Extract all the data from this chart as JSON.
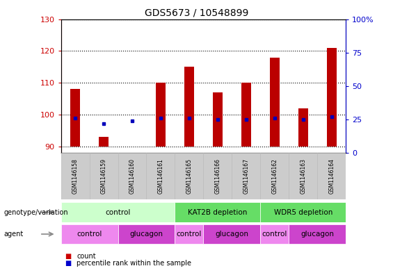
{
  "title": "GDS5673 / 10548899",
  "samples": [
    "GSM1146158",
    "GSM1146159",
    "GSM1146160",
    "GSM1146161",
    "GSM1146165",
    "GSM1146166",
    "GSM1146167",
    "GSM1146162",
    "GSM1146163",
    "GSM1146164"
  ],
  "count_values": [
    108,
    93,
    90,
    110,
    115,
    107,
    110,
    118,
    102,
    121
  ],
  "percentile_values": [
    26,
    22,
    24,
    26,
    26,
    25,
    25,
    26,
    25,
    27
  ],
  "ylim_left": [
    88,
    130
  ],
  "ylim_right": [
    0,
    100
  ],
  "yticks_left": [
    90,
    100,
    110,
    120,
    130
  ],
  "yticks_right": [
    0,
    25,
    50,
    75,
    100
  ],
  "bar_color": "#bb0000",
  "dot_color": "#0000bb",
  "bar_bottom": 90,
  "bar_width": 0.35,
  "genotype_groups": [
    {
      "label": "control",
      "start": 0,
      "end": 4,
      "color": "#ccffcc"
    },
    {
      "label": "KAT2B depletion",
      "start": 4,
      "end": 7,
      "color": "#66dd66"
    },
    {
      "label": "WDR5 depletion",
      "start": 7,
      "end": 10,
      "color": "#66dd66"
    }
  ],
  "agent_groups": [
    {
      "label": "control",
      "start": 0,
      "end": 2,
      "color": "#ee88ee"
    },
    {
      "label": "glucagon",
      "start": 2,
      "end": 4,
      "color": "#cc44cc"
    },
    {
      "label": "control",
      "start": 4,
      "end": 5,
      "color": "#ee88ee"
    },
    {
      "label": "glucagon",
      "start": 5,
      "end": 7,
      "color": "#cc44cc"
    },
    {
      "label": "control",
      "start": 7,
      "end": 8,
      "color": "#ee88ee"
    },
    {
      "label": "glucagon",
      "start": 8,
      "end": 10,
      "color": "#cc44cc"
    }
  ],
  "ytick_left_color": "#cc0000",
  "ytick_right_color": "#0000cc",
  "sample_box_color": "#cccccc",
  "sample_box_edge_color": "#aaaaaa",
  "legend_count_color": "#cc0000",
  "legend_percentile_color": "#0000cc"
}
